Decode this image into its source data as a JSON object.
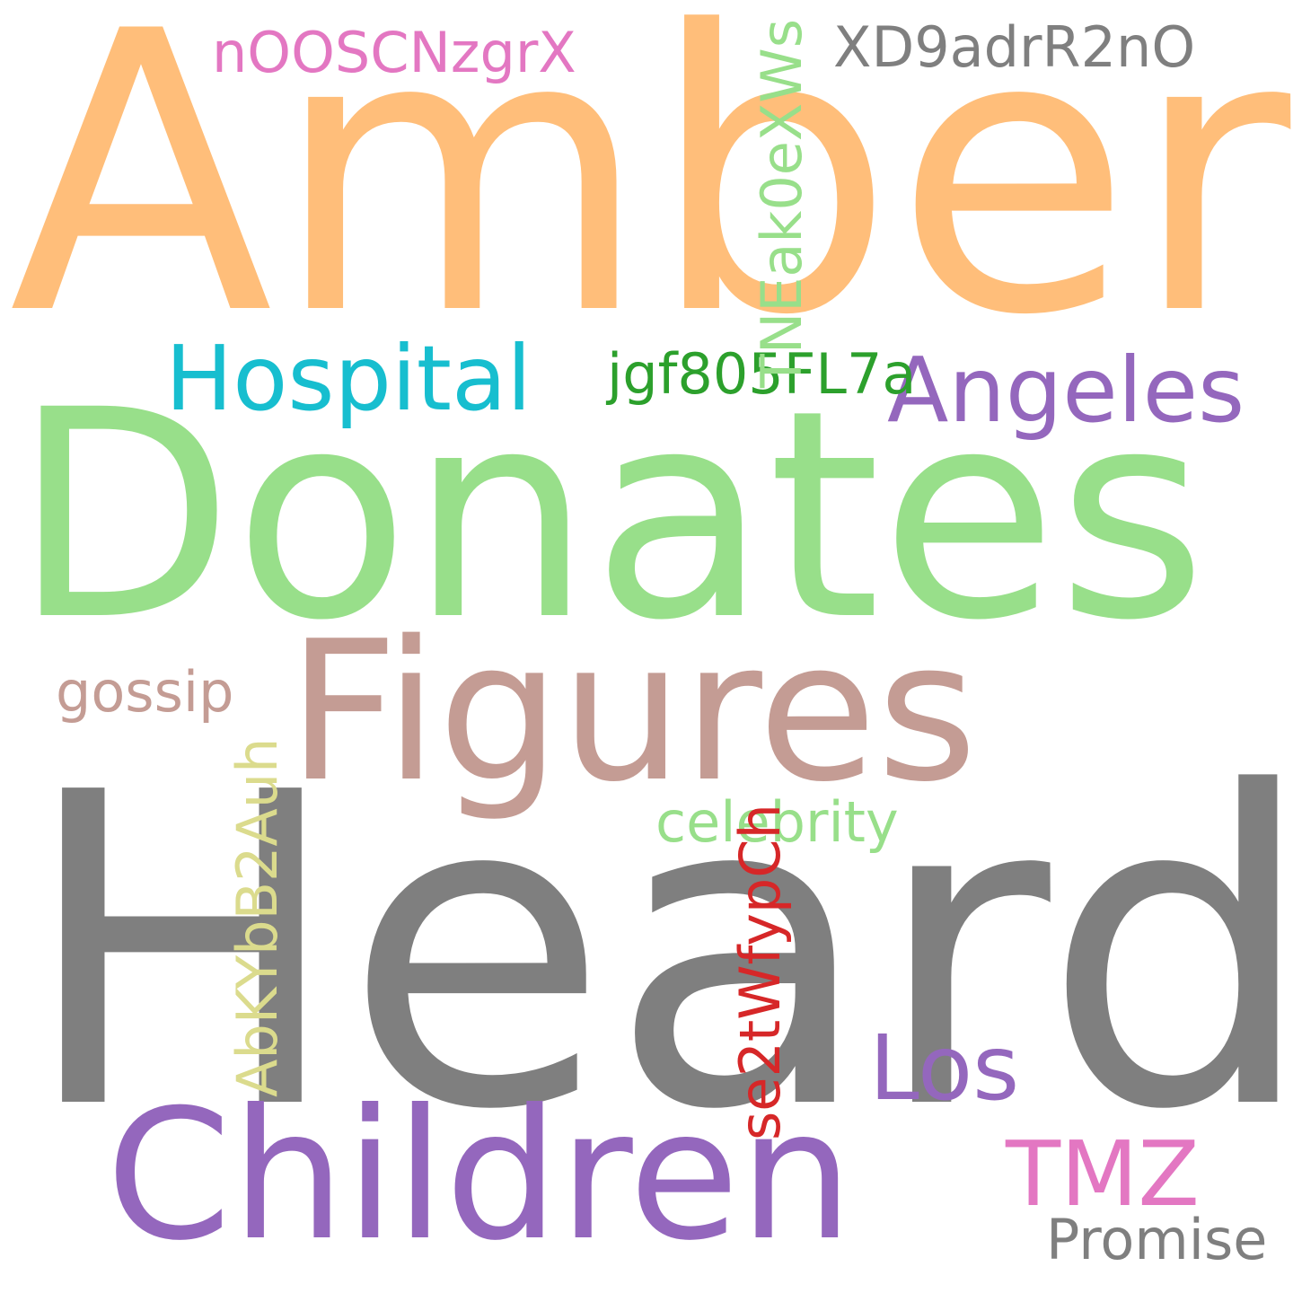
{
  "words": {
    "amber": {
      "text": "Amber",
      "color": "#ffbe7a"
    },
    "donates": {
      "text": "Donates",
      "color": "#98df8a"
    },
    "heard": {
      "text": "Heard",
      "color": "#7f7f7f"
    },
    "figures": {
      "text": "Figures",
      "color": "#c49c94"
    },
    "children": {
      "text": "Children",
      "color": "#9467bd"
    },
    "hospital": {
      "text": "Hospital",
      "color": "#17becf"
    },
    "angeles": {
      "text": "Angeles",
      "color": "#9467bd"
    },
    "los": {
      "text": "Los",
      "color": "#9467bd"
    },
    "tmz": {
      "text": "TMZ",
      "color": "#e377c2"
    },
    "noos": {
      "text": "nOOSCNzgrX",
      "color": "#e377c2"
    },
    "xd9": {
      "text": "XD9adrR2nO",
      "color": "#7f7f7f"
    },
    "jgf": {
      "text": "jgf805FL7a",
      "color": "#2ca02c"
    },
    "gossip": {
      "text": "gossip",
      "color": "#c49c94"
    },
    "celebrity": {
      "text": "celebrity",
      "color": "#98df8a"
    },
    "promise": {
      "text": "Promise",
      "color": "#7f7f7f"
    },
    "tnea": {
      "text": "TNEak0eXWs",
      "color": "#98df8a",
      "orientation": "vertical"
    },
    "abky": {
      "text": "AbKYbB2Auh",
      "color": "#dbdb8d",
      "orientation": "vertical"
    },
    "se2t": {
      "text": "se2tWfypCh",
      "color": "#d62728",
      "orientation": "vertical"
    }
  }
}
